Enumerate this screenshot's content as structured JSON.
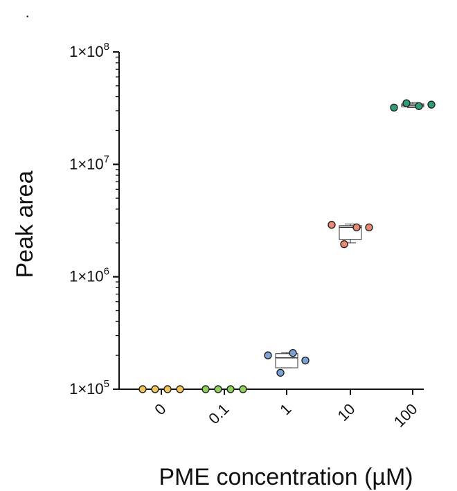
{
  "corner_mark": "·",
  "chart_data": {
    "type": "box-scatter",
    "title": "",
    "xlabel": "PME concentration (µM)",
    "ylabel": "Peak area",
    "yscale": "log",
    "ylim": [
      100000,
      100000000
    ],
    "categories": [
      "0",
      "0.1",
      "1",
      "10",
      "100"
    ],
    "ytick_labels": [
      {
        "value": 100000,
        "base": "1×10",
        "exp": "5"
      },
      {
        "value": 1000000,
        "base": "1×10",
        "exp": "6"
      },
      {
        "value": 10000000,
        "base": "1×10",
        "exp": "7"
      },
      {
        "value": 100000000,
        "base": "1×10",
        "exp": "8"
      }
    ],
    "groups": [
      {
        "category": "0",
        "color": "#f2c25b",
        "points": [
          100000,
          100000,
          100000,
          100000
        ],
        "box": null
      },
      {
        "category": "0.1",
        "color": "#8fd05a",
        "points": [
          100000,
          100000,
          100000,
          100000
        ],
        "box": null
      },
      {
        "category": "1",
        "color": "#7ba1d6",
        "points": [
          200000,
          140000,
          210000,
          180000
        ],
        "box": {
          "low": 155000,
          "q1": 155000,
          "median": 190000,
          "q3": 207000,
          "high": 212000
        }
      },
      {
        "category": "10",
        "color": "#e88a72",
        "points": [
          2900000,
          1950000,
          2750000,
          2750000
        ],
        "box": {
          "low": 2000000,
          "q1": 2150000,
          "median": 2750000,
          "q3": 2850000,
          "high": 2950000
        }
      },
      {
        "category": "100",
        "color": "#2f9e74",
        "points": [
          32000000,
          35000000,
          33000000,
          34000000
        ],
        "box": {
          "low": 32000000,
          "q1": 32500000,
          "median": 33500000,
          "q3": 34500000,
          "high": 35500000
        }
      }
    ]
  }
}
